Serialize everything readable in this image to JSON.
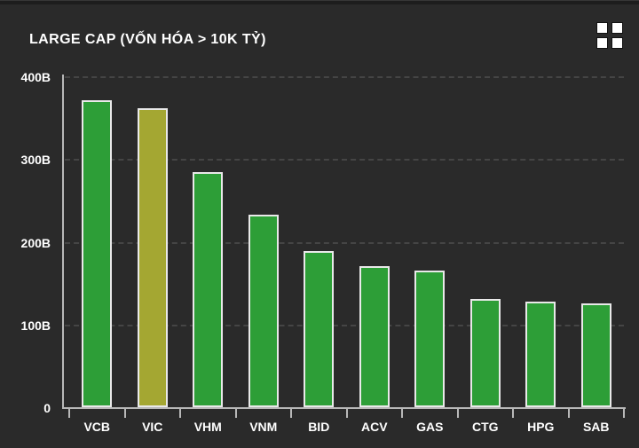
{
  "colors": {
    "background": "#2a2a2a",
    "top_strip": "#1d1d1d",
    "text": "#ffffff",
    "axis": "#b8b8b8",
    "gridline": "#454545",
    "bar_fill": "#2d9e37",
    "bar_highlight_fill": "#a4a732",
    "bar_border": "#e9e9e9"
  },
  "header": {
    "grid_icon": "grid-menu-icon"
  },
  "chart_data": {
    "type": "bar",
    "title": "LARGE CAP (VỐN HÓA > 10K TỶ)",
    "categories": [
      "VCB",
      "VIC",
      "VHM",
      "VNM",
      "BID",
      "ACV",
      "GAS",
      "CTG",
      "HPG",
      "SAB"
    ],
    "values": [
      372,
      363,
      285,
      234,
      190,
      172,
      166,
      132,
      129,
      127
    ],
    "highlighted_category": "VIC",
    "xlabel": "",
    "ylabel": "",
    "ylim": [
      0,
      400
    ],
    "y_axis": {
      "ticks": [
        {
          "value": 400,
          "label": "400B"
        },
        {
          "value": 300,
          "label": "300B"
        },
        {
          "value": 200,
          "label": "200B"
        },
        {
          "value": 100,
          "label": "100B"
        },
        {
          "value": 0,
          "label": "0"
        }
      ]
    },
    "grid": true,
    "legend": false
  }
}
